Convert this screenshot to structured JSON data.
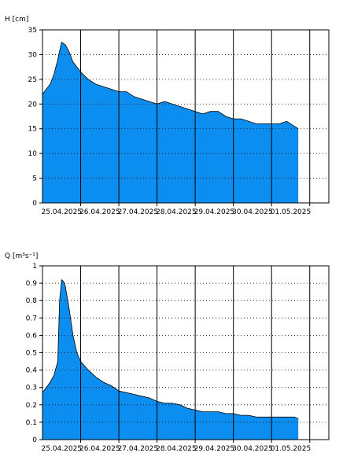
{
  "colors": {
    "fill": "#0b8ef0",
    "stroke": "#000000",
    "grid": "#000000",
    "background": "#ffffff"
  },
  "chart_data": [
    {
      "type": "area",
      "ylabel": "H [cm]",
      "ylim": [
        0,
        35
      ],
      "yticks": [
        "0",
        "5",
        "10",
        "15",
        "20",
        "25",
        "30",
        "35"
      ],
      "xlim": [
        0,
        7.5
      ],
      "xticks": [
        "25.04.2025",
        "26.04.2025",
        "27.04.2025",
        "28.04.2025",
        "29.04.2025",
        "30.04.2025",
        "01.05.2025"
      ],
      "grid": true,
      "x": [
        0.0,
        0.1,
        0.2,
        0.3,
        0.4,
        0.5,
        0.6,
        0.7,
        0.8,
        0.9,
        1.0,
        1.2,
        1.4,
        1.6,
        1.8,
        2.0,
        2.2,
        2.4,
        2.6,
        2.8,
        3.0,
        3.2,
        3.4,
        3.6,
        3.8,
        4.0,
        4.2,
        4.4,
        4.6,
        4.8,
        5.0,
        5.2,
        5.4,
        5.6,
        5.8,
        6.0,
        6.2,
        6.4,
        6.6,
        6.7
      ],
      "values": [
        22,
        23,
        24,
        26,
        29,
        32.5,
        32,
        30.5,
        28.5,
        27.5,
        26.5,
        25,
        24,
        23.5,
        23,
        22.5,
        22.5,
        21.5,
        21,
        20.5,
        20,
        20.5,
        20,
        19.5,
        19,
        18.5,
        18,
        18.5,
        18.5,
        17.5,
        17,
        17,
        16.5,
        16,
        16,
        16,
        16,
        16.5,
        15.5,
        15
      ]
    },
    {
      "type": "area",
      "ylabel": "Q [m³s⁻¹]",
      "ylim": [
        0,
        1
      ],
      "yticks": [
        "0",
        "0.1",
        "0.2",
        "0.3",
        "0.4",
        "0.5",
        "0.6",
        "0.7",
        "0.8",
        "0.9",
        "1"
      ],
      "xlim": [
        0,
        7.5
      ],
      "xticks": [
        "25.04.2025",
        "26.04.2025",
        "27.04.2025",
        "28.04.2025",
        "29.04.2025",
        "30.04.2025",
        "01.05.2025"
      ],
      "grid": true,
      "x": [
        0.0,
        0.1,
        0.2,
        0.3,
        0.4,
        0.45,
        0.5,
        0.55,
        0.6,
        0.7,
        0.8,
        0.9,
        1.0,
        1.2,
        1.4,
        1.6,
        1.8,
        2.0,
        2.2,
        2.4,
        2.6,
        2.8,
        3.0,
        3.2,
        3.4,
        3.6,
        3.8,
        4.0,
        4.2,
        4.4,
        4.6,
        4.8,
        5.0,
        5.2,
        5.4,
        5.6,
        5.8,
        6.0,
        6.2,
        6.4,
        6.6,
        6.7
      ],
      "values": [
        0.27,
        0.3,
        0.33,
        0.37,
        0.45,
        0.8,
        0.92,
        0.91,
        0.88,
        0.75,
        0.6,
        0.5,
        0.45,
        0.4,
        0.36,
        0.33,
        0.31,
        0.28,
        0.27,
        0.26,
        0.25,
        0.24,
        0.22,
        0.21,
        0.21,
        0.2,
        0.18,
        0.17,
        0.16,
        0.16,
        0.16,
        0.15,
        0.15,
        0.14,
        0.14,
        0.13,
        0.13,
        0.13,
        0.13,
        0.13,
        0.13,
        0.12
      ]
    }
  ]
}
